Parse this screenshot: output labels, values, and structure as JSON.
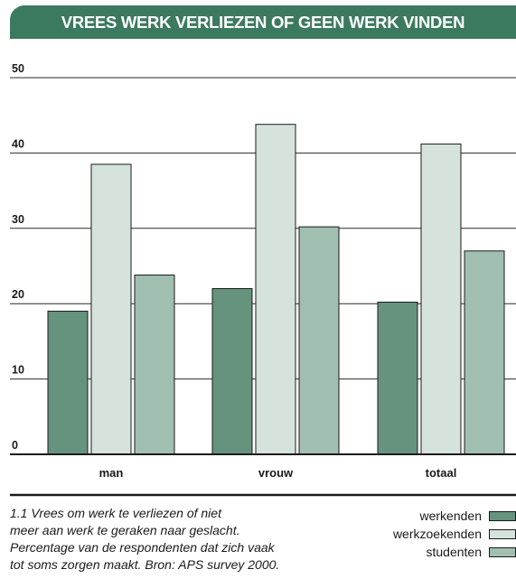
{
  "header": {
    "title": "VREES WERK VERLIEZEN OF GEEN WERK VINDEN"
  },
  "caption": {
    "lines": [
      "1.1  Vrees om werk te verliezen of niet",
      "meer aan werk te geraken naar geslacht.",
      "Percentage van de respondenten dat zich vaak",
      "tot soms zorgen maakt. Bron: APS survey 2000."
    ]
  },
  "colors": {
    "title_bar": "#3b7a5e",
    "werkenden": "#65937d",
    "werkzoekenden": "#d5e3dc",
    "studenten": "#a1bfb1"
  },
  "chart_data": {
    "type": "bar",
    "categories": [
      "man",
      "vrouw",
      "totaal"
    ],
    "series": [
      {
        "name": "werkenden",
        "values": [
          19,
          22,
          20.2
        ]
      },
      {
        "name": "werkzoekenden",
        "values": [
          38.5,
          43.8,
          41.2
        ]
      },
      {
        "name": "studenten",
        "values": [
          23.8,
          30.2,
          27
        ]
      }
    ],
    "title": "VREES WERK VERLIEZEN OF GEEN WERK VINDEN",
    "xlabel": "",
    "ylabel": "",
    "ylim": [
      0,
      50
    ],
    "yticks": [
      "0",
      "10",
      "20",
      "30",
      "40",
      "50"
    ],
    "grid": true,
    "legend": "bottom-right"
  }
}
